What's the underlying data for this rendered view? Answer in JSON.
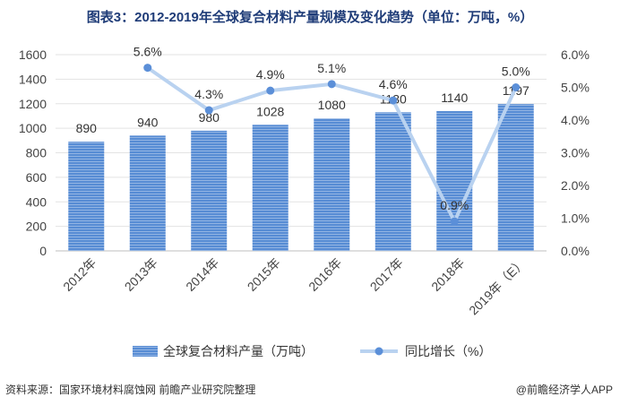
{
  "title": "图表3：2012-2019年全球复合材料产量规模及变化趋势（单位：万吨，%）",
  "footer": {
    "source": "资料来源：国家环境材料腐蚀网  前瞻产业研究院整理",
    "brand": "@前瞻经济学人APP"
  },
  "colors": {
    "bar_top": "#6f9fe0",
    "bar_bottom": "#3f78c8",
    "line": "#b9d2f0",
    "marker": "#5b8fd8",
    "grid": "#e3e3e3",
    "title": "#1f3c78"
  },
  "chart_data": {
    "type": "bar",
    "categories": [
      "2012年",
      "2013年",
      "2014年",
      "2015年",
      "2016年",
      "2017年",
      "2018年",
      "2019年（E）"
    ],
    "series": [
      {
        "name": "全球复合材料产量（万吨）",
        "type": "bar",
        "axis": "left",
        "values": [
          890,
          940,
          980,
          1028,
          1080,
          1130,
          1140,
          1197
        ],
        "labels": [
          "890",
          "940",
          "980",
          "1028",
          "1080",
          "1130",
          "1140",
          "1197"
        ]
      },
      {
        "name": "同比增长（%）",
        "type": "line",
        "axis": "right",
        "values": [
          null,
          5.6,
          4.3,
          4.9,
          5.1,
          4.6,
          0.9,
          5.0
        ],
        "labels": [
          "",
          "5.6%",
          "4.3%",
          "4.9%",
          "5.1%",
          "4.6%",
          "0.9%",
          "5.0%"
        ]
      }
    ],
    "y_left": {
      "min": 0,
      "max": 1600,
      "ticks": [
        "0",
        "200",
        "400",
        "600",
        "800",
        "1000",
        "1200",
        "1400",
        "1600"
      ]
    },
    "y_right": {
      "min": 0,
      "max": 6,
      "ticks": [
        "0.0%",
        "1.0%",
        "2.0%",
        "3.0%",
        "4.0%",
        "5.0%",
        "6.0%"
      ]
    },
    "grid": true,
    "legend": "bottom"
  }
}
